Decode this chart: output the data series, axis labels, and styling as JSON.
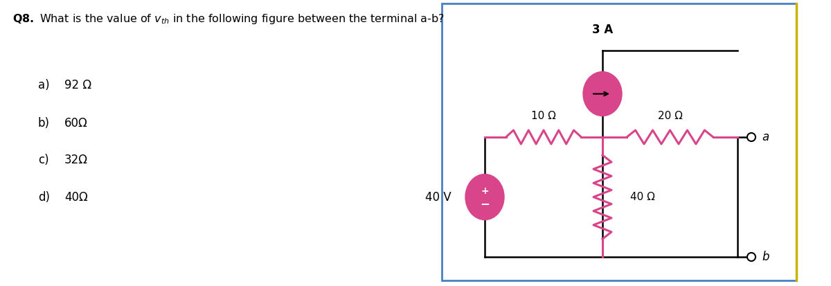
{
  "bg_color": "#ffffff",
  "circuit_box_color": "#4a7fc1",
  "circuit_right_line_color": "#c8b400",
  "resistor_color": "#d9458a",
  "source_color": "#d9458a",
  "wire_color": "#000000",
  "fig_width": 12.0,
  "fig_height": 4.13,
  "R1_label": "10 Ω",
  "R2_label": "20 Ω",
  "R3_label": "40 Ω",
  "V_label": "40 V",
  "I_label": "3 A",
  "options": [
    [
      "a)",
      "92 Ω"
    ],
    [
      "b)",
      "60Ω"
    ],
    [
      "c)",
      "32Ω"
    ],
    [
      "d)",
      "40Ω"
    ]
  ]
}
